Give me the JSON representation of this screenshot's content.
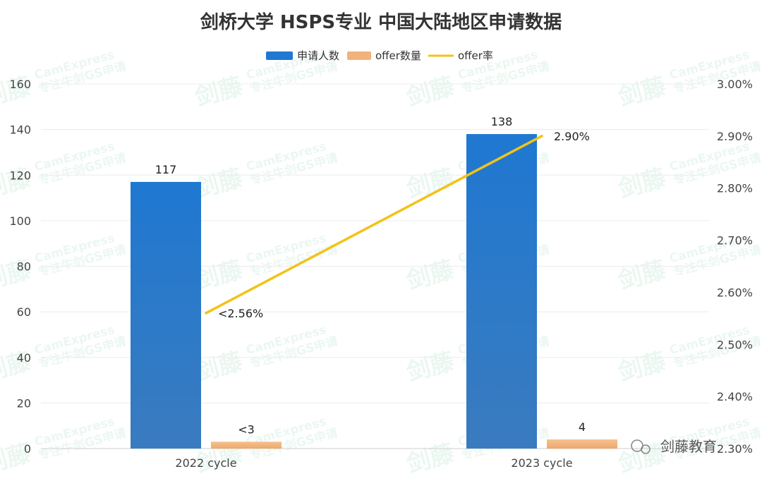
{
  "chart_data": {
    "type": "bar",
    "title": "剑桥大学 HSPS专业 中国大陆地区申请数据",
    "categories": [
      "2022 cycle",
      "2023 cycle"
    ],
    "series": [
      {
        "name": "申请人数",
        "kind": "bar",
        "axis": "left",
        "color": "#1f78d1",
        "values": [
          117,
          138
        ],
        "labels": [
          "117",
          "138"
        ]
      },
      {
        "name": "offer数量",
        "kind": "bar",
        "axis": "left",
        "color": "#f2b27a",
        "values": [
          3,
          4
        ],
        "labels": [
          "<3",
          "4"
        ]
      },
      {
        "name": "offer率",
        "kind": "line",
        "axis": "right",
        "color": "#f2c318",
        "values": [
          2.56,
          2.9
        ],
        "labels": [
          "<2.56%",
          "2.90%"
        ]
      }
    ],
    "y_left": {
      "min": 0,
      "max": 160,
      "ticks": [
        "0",
        "20",
        "40",
        "60",
        "80",
        "100",
        "120",
        "140",
        "160"
      ]
    },
    "y_right": {
      "min": 2.3,
      "max": 3.0,
      "ticks": [
        "2.30%",
        "2.40%",
        "2.50%",
        "2.60%",
        "2.70%",
        "2.80%",
        "2.90%",
        "3.00%"
      ]
    },
    "legend_position": "top-center",
    "grid": true
  },
  "watermark": {
    "brand": "剑藤",
    "name": "CamExpress",
    "slogan": "专注牛剑GS申请"
  },
  "footer_brand": "剑藤教育"
}
